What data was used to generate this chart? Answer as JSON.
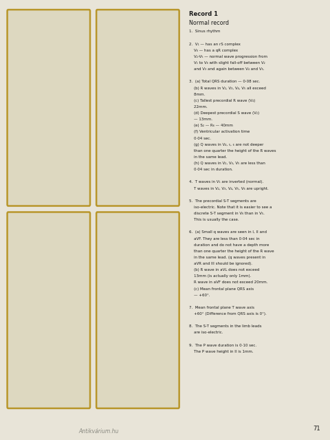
{
  "page_bg": "#e8e4d8",
  "card_bg": "#ddd8c0",
  "card_border": "#b8962a",
  "ecg_color": "#1a2870",
  "grid_major": "#c4a030",
  "grid_minor": "#cead40",
  "title": "Record 1",
  "subtitle": "Normal record",
  "text_color": "#1a1a1a",
  "page_number": "71",
  "watermark": "Antikvárium.hu",
  "annotations": [
    "1.  Sinus rhythm",
    "",
    "2.  V₁ — has an rS complex",
    "    V₆ — has a qR complex",
    "    V₂-V₅ — normal wave progression from",
    "    V₁ to V₆ with slight fall-off between V₂",
    "    and V₃ and again between V₄ and V₅.",
    "",
    "3.  (a) Total QRS duration — 0·08 sec.",
    "    (b) R waves in V₂, V₃, V₄, V₅ all exceed",
    "    8mm.",
    "    (c) Tallest precordial R wave (V₄)",
    "    22mm.",
    "    (d) Deepest precordial S wave (V₂)",
    "    — 13mm.",
    "    (e) S₂ — R₆ — 40mm",
    "    (f) Ventricular activation time",
    "    0·04 sec.",
    "    (g) Q waves in V₄, ₅, ₆ are not deeper",
    "    than one quarter the height of the R waves",
    "    in the same lead.",
    "    (h) Q waves in V₂, V₃, V₅ are less than",
    "    0·04 sec in duration.",
    "",
    "4.  T waves in V₁ are inverted (normal).",
    "    T waves in V₂, V₃, V₄, V₅, V₆ are upright.",
    "",
    "5.  The precordial S-T segments are",
    "    iso-electric. Note that it is easier to see a",
    "    discrete S-T segment in V₆ than in V₅.",
    "    This is usually the case.",
    "",
    "6.  (a) Small q waves are seen in I, II and",
    "    aVF. They are less than 0·04 sec in",
    "    duration and do not have a depth more",
    "    than one quarter the height of the R wave",
    "    in the same lead. (q waves present in",
    "    aVR and III should be ignored).",
    "    (b) R wave in aVL does not exceed",
    "    13mm (is actually only 1mm).",
    "    R wave in aVF does not exceed 20mm.",
    "    (c) Mean frontal plane QRS axis",
    "    — +60°.",
    "",
    "7.  Mean frontal plane T wave axis",
    "    +60° (Difference from QRS axis is 0°).",
    "",
    "8.  The S-T segments in the limb leads",
    "    are iso-electric.",
    "",
    "9.  The P wave duration is 0·10 sec.",
    "    The P wave height in II is 1mm."
  ]
}
